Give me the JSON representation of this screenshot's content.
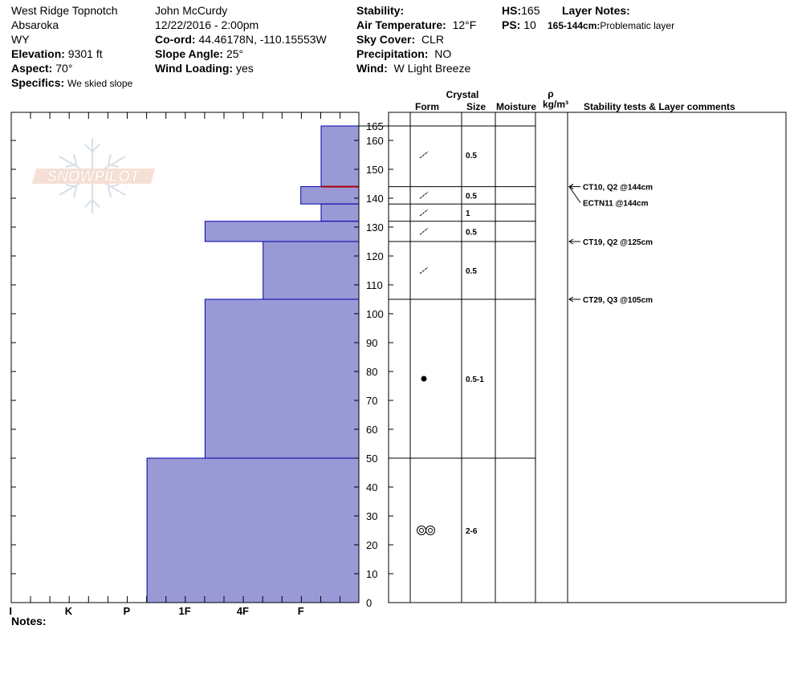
{
  "header": {
    "location": "West Ridge Topnotch",
    "range": "Absaroka",
    "state": "WY",
    "elevation_label": "Elevation:",
    "elevation": "9301 ft",
    "aspect_label": "Aspect:",
    "aspect": "70°",
    "specifics_label": "Specifics:",
    "specifics": "We skied slope",
    "observer": "John McCurdy",
    "datetime": "12/22/2016 - 2:00pm",
    "coord_label": "Co-ord:",
    "coord": "44.46178N, -110.15553W",
    "slope_label": "Slope Angle:",
    "slope": "25°",
    "wind_loading_label": "Wind Loading:",
    "wind_loading": "yes",
    "stability_label": "Stability:",
    "air_temp_label": "Air Temperature:",
    "air_temp": "12°F",
    "sky_label": "Sky Cover:",
    "sky": "CLR",
    "precip_label": "Precipitation:",
    "precip": "NO",
    "wind_label": "Wind:",
    "wind": "W Light Breeze",
    "hs_label": "HS:",
    "hs": "165",
    "ps_label": "PS:",
    "ps": "10",
    "layer_notes_label": "Layer Notes:",
    "layer_note_range": "165-144cm:",
    "layer_note_text": "Problematic layer"
  },
  "logo_text": "SNOWPILOT",
  "notes_label": "Notes:",
  "colors": {
    "hardness_fill": "#9999d6",
    "hardness_edge": "#0000aa",
    "failure_line": "#aa0000"
  },
  "chart_data": {
    "type": "snow-profile",
    "y_ticks": [
      "165",
      "160",
      "150",
      "140",
      "130",
      "120",
      "110",
      "100",
      "90",
      "80",
      "70",
      "60",
      "50",
      "40",
      "30",
      "20",
      "10",
      "0"
    ],
    "y_tick_values": [
      165,
      160,
      150,
      140,
      130,
      120,
      110,
      100,
      90,
      80,
      70,
      60,
      50,
      40,
      30,
      20,
      10,
      0
    ],
    "hardness_axis": [
      "I",
      "K",
      "P",
      "1F",
      "4F",
      "F"
    ],
    "hardness_scale_values": [
      6,
      5,
      4,
      3,
      2,
      1
    ],
    "ylim": [
      0,
      170
    ],
    "hardness_layers": [
      {
        "bottom": 144,
        "top": 165,
        "hardness": 0.65
      },
      {
        "bottom": 138,
        "top": 144,
        "hardness": 1.0
      },
      {
        "bottom": 132,
        "top": 138,
        "hardness": 0.65
      },
      {
        "bottom": 125,
        "top": 132,
        "hardness": 2.65
      },
      {
        "bottom": 105,
        "top": 125,
        "hardness": 1.65
      },
      {
        "bottom": 50,
        "top": 105,
        "hardness": 2.65
      },
      {
        "bottom": 0,
        "top": 50,
        "hardness": 3.65
      }
    ],
    "failure_depth": 144,
    "column_headers": {
      "crystal": "Crystal",
      "form": "Form",
      "size": "Size",
      "moisture": "Moisture",
      "rho": "ρ",
      "density_unit": "kg/m³",
      "comments": "Stability tests & Layer comments"
    },
    "layer_boundaries": [
      165,
      144,
      138,
      132,
      125,
      105,
      50,
      0
    ],
    "crystal_layers": [
      {
        "mid": 155,
        "form": "precip-particles",
        "size": "0.5"
      },
      {
        "mid": 141,
        "form": "precip-particles",
        "size": "0.5"
      },
      {
        "mid": 135,
        "form": "precip-particles",
        "size": "1"
      },
      {
        "mid": 128.5,
        "form": "precip-particles",
        "size": "0.5"
      },
      {
        "mid": 115,
        "form": "precip-particles",
        "size": "0.5"
      },
      {
        "mid": 77.5,
        "form": "rounded-grains",
        "size": "0.5-1"
      },
      {
        "mid": 25,
        "form": "depth-hoar",
        "size": "2-6"
      }
    ],
    "stability_tests": [
      {
        "depth": 144,
        "label": "CT10, Q2 @144cm"
      },
      {
        "depth": 144,
        "label": "ECTN11 @144cm"
      },
      {
        "depth": 125,
        "label": "CT19, Q2 @125cm"
      },
      {
        "depth": 105,
        "label": "CT29, Q3 @105cm"
      }
    ]
  }
}
